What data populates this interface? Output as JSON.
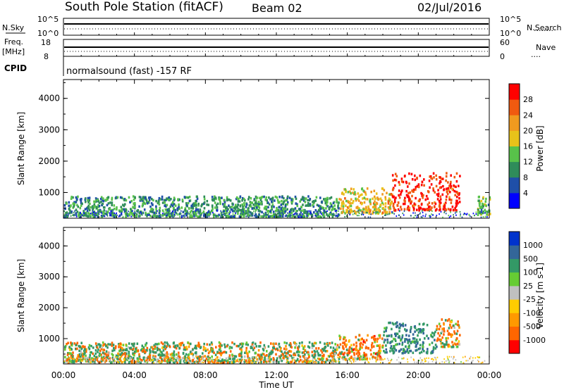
{
  "header": {
    "station": "South Pole Station (fitACF)",
    "beam": "Beam 02",
    "date": "02/Jul/2016"
  },
  "sky_panel": {
    "left_label": "N.Sky",
    "right_label": "N.Search",
    "left_ticks": [
      "10^5",
      "10^0"
    ],
    "right_ticks": [
      "10^5",
      "10^0"
    ]
  },
  "freq_panel": {
    "label_line1": "Freq.",
    "label_line2": "[MHz]",
    "right_label": "Nave",
    "left_ticks": [
      "18",
      "8"
    ],
    "right_ticks": [
      "60",
      "0"
    ]
  },
  "cpid": {
    "label": "CPID",
    "text": "normalsound (fast) -157 RF"
  },
  "time_axis": {
    "label": "Time UT",
    "ticks": [
      "00:00",
      "04:00",
      "08:00",
      "12:00",
      "16:00",
      "20:00",
      "00:00"
    ]
  },
  "colors": {
    "power": [
      "#0000ff",
      "#1f4fa8",
      "#2f8c5a",
      "#58c24a",
      "#e8c21a",
      "#f09a1f",
      "#f05a10",
      "#ff0000"
    ],
    "velocity": [
      "#ff0000",
      "#ff6600",
      "#ff9900",
      "#ffcc00",
      "#c0c0c0",
      "#66cc33",
      "#339966",
      "#336699",
      "#0033cc"
    ]
  },
  "chart_data": [
    {
      "type": "heatmap",
      "panel": "power",
      "ylabel": "Slant Range [km]",
      "xlabel": "Time UT",
      "yticks": [
        1000,
        2000,
        3000,
        4000
      ],
      "ylim": [
        180,
        4600
      ],
      "xlim_hours": [
        0,
        24
      ],
      "colorbar_label": "Power [dB]",
      "colorbar_ticks": [
        "4",
        "8",
        "12",
        "16",
        "20",
        "24",
        "28"
      ],
      "clim": [
        0,
        30
      ],
      "features": [
        {
          "t_start": 0.0,
          "t_end": 15.5,
          "range_lo": 200,
          "range_hi": 850,
          "level": 10
        },
        {
          "t_start": 15.5,
          "t_end": 18.5,
          "range_lo": 300,
          "range_hi": 1100,
          "level": 18
        },
        {
          "t_start": 18.5,
          "t_end": 22.3,
          "range_lo": 400,
          "range_hi": 1600,
          "level": 27
        },
        {
          "t_start": 23.3,
          "t_end": 24.0,
          "range_lo": 250,
          "range_hi": 850,
          "level": 12
        }
      ]
    },
    {
      "type": "heatmap",
      "panel": "velocity",
      "ylabel": "Slant Range [km]",
      "xlabel": "Time UT",
      "yticks": [
        1000,
        2000,
        3000,
        4000
      ],
      "ylim": [
        180,
        4600
      ],
      "xlim_hours": [
        0,
        24
      ],
      "colorbar_label": "Velocity [m s-1]",
      "colorbar_ticks": [
        "-1000",
        "-500",
        "-100",
        "-25",
        "25",
        "100",
        "500",
        "1000"
      ],
      "clim": [
        -1000,
        1000
      ],
      "features": [
        {
          "t_start": 0.0,
          "t_end": 15.5,
          "range_lo": 200,
          "range_hi": 850,
          "velocity": 50
        },
        {
          "t_start": 15.5,
          "t_end": 18.0,
          "range_lo": 300,
          "range_hi": 1100,
          "velocity": -200
        },
        {
          "t_start": 18.0,
          "t_end": 21.0,
          "range_lo": 500,
          "range_hi": 1500,
          "velocity": 400
        },
        {
          "t_start": 21.0,
          "t_end": 22.3,
          "range_lo": 700,
          "range_hi": 1600,
          "velocity": -150
        }
      ]
    }
  ]
}
